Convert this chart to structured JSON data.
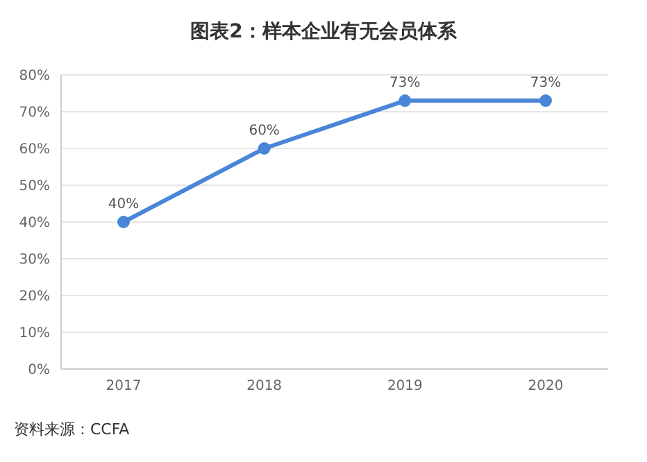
{
  "chart_data": {
    "type": "line",
    "title": "图表2：样本企业有无会员体系",
    "categories": [
      "2017",
      "2018",
      "2019",
      "2020"
    ],
    "series": [
      {
        "color": "#4a86d8",
        "values": [
          40,
          60,
          73,
          73
        ]
      }
    ],
    "ylim": [
      0,
      80
    ],
    "yticks": [
      {
        "value": 0,
        "label": "0%"
      },
      {
        "value": 10,
        "label": "10%"
      },
      {
        "value": 20,
        "label": "20%"
      },
      {
        "value": 30,
        "label": "30%"
      },
      {
        "value": 40,
        "label": "40%"
      },
      {
        "value": 50,
        "label": "50%"
      },
      {
        "value": 60,
        "label": "60%"
      },
      {
        "value": 70,
        "label": "70%"
      },
      {
        "value": 80,
        "label": "80%"
      }
    ],
    "value_labels": [
      "40%",
      "60%",
      "73%",
      "73%"
    ],
    "grid": "y",
    "marker": "circle",
    "line_style": "solid",
    "annotations": [
      "资料来源：CCFA"
    ]
  }
}
